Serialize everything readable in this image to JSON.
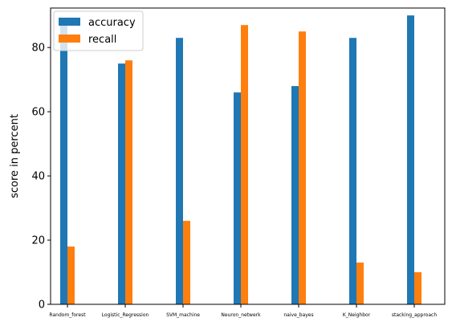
{
  "chart_data": {
    "type": "bar",
    "title": "",
    "xlabel": "",
    "ylabel": "score in percent",
    "categories": [
      "Random_forest",
      "Logistic_Regression",
      "SVM_machine",
      "Neuron_netwerk",
      "naive_bayes",
      "K_Neighbor",
      "stacking_approach"
    ],
    "series": [
      {
        "name": "accuracy",
        "color": "#1f77b4",
        "values": [
          88,
          75,
          83,
          66,
          68,
          83,
          90
        ]
      },
      {
        "name": "recall",
        "color": "#ff7f0e",
        "values": [
          18,
          76,
          26,
          87,
          85,
          13,
          10
        ]
      }
    ],
    "ylim": [
      0,
      92.3
    ],
    "yticks": [
      0,
      20,
      40,
      60,
      80
    ],
    "grid": false,
    "legend_position": "top-left"
  }
}
